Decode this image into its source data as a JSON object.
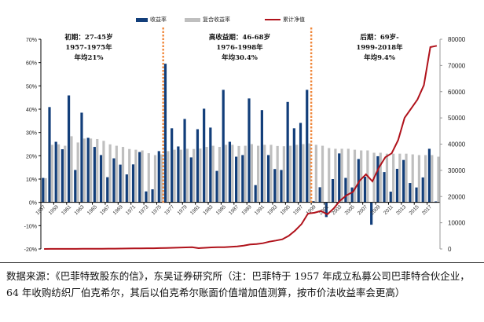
{
  "legend": [
    {
      "label": "收益率",
      "color": "#123E7A"
    },
    {
      "label": "复合收益率",
      "color": "#BFBFBF"
    },
    {
      "label": "累计净值",
      "color": "#B0121B"
    }
  ],
  "annotations": [
    {
      "lines": [
        "初期：27-45岁",
        "1957-1975年",
        "年均21%"
      ]
    },
    {
      "lines": [
        "高收益期：46-68岁",
        "1976-1998年",
        "年均30.4%"
      ]
    },
    {
      "lines": [
        "后期：69岁-",
        "1999-2018年",
        "年均9.4%"
      ]
    }
  ],
  "footnote": "数据来源：《巴菲特致股东的信》，东吴证券研究所（注：巴菲特于 1957 年成立私募公司巴菲特合伙企业，64 年收购纺织厂伯克希尔，其后以伯克希尔账面价值增加值测算，按市价法收益率会更高）",
  "colors": {
    "divider": "#F0883C",
    "axis": "#000000"
  },
  "chart_data": {
    "type": "bar+line",
    "x": [
      1957,
      1958,
      1959,
      1960,
      1961,
      1962,
      1963,
      1964,
      1965,
      1966,
      1967,
      1968,
      1969,
      1970,
      1971,
      1972,
      1973,
      1974,
      1975,
      1976,
      1977,
      1978,
      1979,
      1980,
      1981,
      1982,
      1983,
      1984,
      1985,
      1986,
      1987,
      1988,
      1989,
      1990,
      1991,
      1992,
      1993,
      1994,
      1995,
      1996,
      1997,
      1998,
      1999,
      2000,
      2001,
      2002,
      2003,
      2004,
      2005,
      2006,
      2007,
      2008,
      2009,
      2010,
      2011,
      2012,
      2013,
      2014,
      2015,
      2016,
      2017,
      2018
    ],
    "x_tick_labels": [
      "1957",
      "1959",
      "1961",
      "1963",
      "1965",
      "1967",
      "1969",
      "1971",
      "1973",
      "1975",
      "1977",
      "1979",
      "1981",
      "1983",
      "1985",
      "1987",
      "1989",
      "1991",
      "1993",
      "1995",
      "1997",
      "1999",
      "2001",
      "2003",
      "2005",
      "2007",
      "2009",
      "2011",
      "2013",
      "2015",
      "2017"
    ],
    "series": [
      {
        "name": "收益率",
        "axis": "left",
        "kind": "bar",
        "values": [
          10.5,
          40.9,
          26.0,
          22.8,
          45.9,
          13.9,
          38.5,
          27.7,
          23.8,
          20.3,
          10.8,
          18.9,
          16.2,
          12.0,
          16.3,
          21.6,
          4.7,
          5.6,
          22.0,
          59.5,
          31.8,
          24.0,
          35.8,
          19.3,
          31.4,
          40.2,
          32.1,
          13.5,
          48.3,
          26.0,
          19.6,
          20.3,
          44.6,
          7.4,
          39.6,
          20.3,
          14.3,
          13.9,
          43.1,
          31.8,
          34.1,
          48.3,
          0.5,
          6.5,
          -6.3,
          10.0,
          21.0,
          10.5,
          6.4,
          18.6,
          11.0,
          -9.6,
          19.8,
          13.0,
          4.6,
          14.4,
          18.2,
          8.3,
          6.4,
          10.7,
          23.0,
          0.4
        ]
      },
      {
        "name": "复合收益率",
        "axis": "left",
        "kind": "bar",
        "values": [
          10.4,
          24.7,
          24.9,
          24.3,
          28.4,
          25.7,
          27.4,
          27.4,
          27.2,
          26.4,
          24.9,
          24.3,
          23.8,
          22.9,
          22.6,
          22.3,
          21.1,
          20.3,
          20.6,
          22.0,
          22.6,
          22.6,
          23.0,
          22.9,
          23.1,
          23.8,
          24.3,
          23.8,
          24.7,
          24.7,
          24.2,
          24.3,
          25.0,
          24.3,
          24.7,
          24.7,
          24.2,
          24.1,
          24.3,
          24.7,
          25.0,
          25.3,
          24.7,
          24.3,
          23.3,
          23.0,
          23.0,
          23.0,
          22.6,
          22.3,
          22.3,
          21.3,
          21.3,
          20.9,
          20.9,
          20.9,
          20.9,
          20.6,
          20.3,
          20.3,
          20.3,
          19.6
        ]
      },
      {
        "name": "累计净值",
        "axis": "right",
        "kind": "line",
        "values": [
          10,
          15,
          19,
          23,
          34,
          38,
          53,
          68,
          84,
          101,
          112,
          133,
          155,
          173,
          201,
          245,
          256,
          270,
          330,
          400,
          450,
          520,
          600,
          700,
          300,
          450,
          600,
          650,
          700,
          850,
          1000,
          1300,
          1700,
          1900,
          2200,
          2800,
          3200,
          3700,
          5000,
          7000,
          9500,
          13500,
          13800,
          14500,
          13200,
          15500,
          18500,
          20500,
          21800,
          26000,
          28500,
          25800,
          31000,
          35000,
          36500,
          41500,
          50000,
          53500,
          57000,
          62500,
          77000,
          77500
        ]
      }
    ],
    "y_left": {
      "min": -20,
      "max": 70,
      "step": 10,
      "tick_labels": [
        "-20%",
        "-10%",
        "0%",
        "10%",
        "20%",
        "30%",
        "40%",
        "50%",
        "60%",
        "70%"
      ]
    },
    "y_right": {
      "min": 0,
      "max": 80000,
      "step": 10000,
      "tick_labels": [
        "0",
        "10000",
        "20000",
        "30000",
        "40000",
        "50000",
        "60000",
        "70000",
        "80000"
      ]
    },
    "period_dividers_after_year": [
      1975,
      1998
    ],
    "grid": false,
    "legend_position": "top"
  }
}
